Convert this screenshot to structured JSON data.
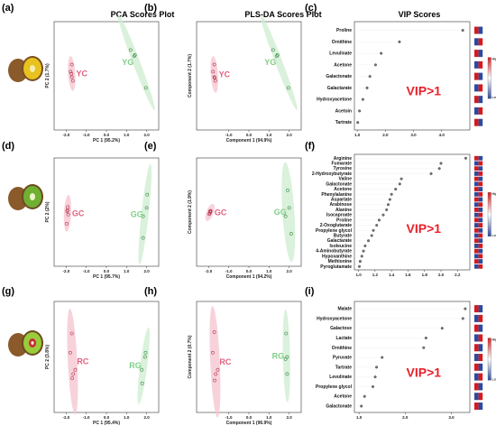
{
  "colors": {
    "yellow_group": "#e0607e",
    "green_group": "#7fcf86",
    "yellow_fill": "#f6c3cf",
    "green_fill": "#cdeccf",
    "red_group": "#e0607e",
    "red_fill": "#f6c3cf",
    "vip_text": "#e8202a",
    "heat_high": "#d7191c",
    "heat_low": "#2c4a9e"
  },
  "column_titles": {
    "pca": "PCA Scores Plot",
    "plsda": "PLS-DA Scores Plot",
    "vip": "VIP Scores"
  },
  "vip_threshold_label": "VIP>1",
  "heat_legend": {
    "high": "High",
    "low": "Low"
  },
  "chart_data": [
    {
      "panel": "(a)",
      "type": "scatter",
      "xlabel": "PC 1 (95.2%)",
      "ylabel": "PC 2 (1.7%)",
      "xlim": [
        -2.6,
        2.6
      ],
      "ylim": [
        -1.3,
        1.3
      ],
      "xticks": [
        "-2.0",
        "-1.0",
        "0.0",
        "1.0",
        "2.0"
      ],
      "xtick_values": [
        -2,
        -1,
        0,
        1,
        2
      ],
      "series": [
        {
          "name": "YC",
          "points": [
            [
              -1.72,
              0.27
            ],
            [
              -1.78,
              0.1
            ],
            [
              -1.72,
              -0.03
            ],
            [
              -1.67,
              -0.12
            ],
            [
              -1.74,
              0.05
            ]
          ]
        },
        {
          "name": "YG",
          "points": [
            [
              1.38,
              0.47
            ],
            [
              1.42,
              0.5
            ],
            [
              1.96,
              -0.29
            ],
            [
              1.2,
              0.62
            ]
          ]
        }
      ]
    },
    {
      "panel": "(b)",
      "type": "scatter",
      "xlabel": "Component 1 (94.9%)",
      "ylabel": "Component 2 (1.7%)",
      "xlim": [
        -2.6,
        2.6
      ],
      "ylim": [
        -1.3,
        1.3
      ],
      "xticks": [
        "-1.0",
        "0.0",
        "1.0",
        "2.0"
      ],
      "xtick_values": [
        -1,
        0,
        1,
        2
      ],
      "series": [
        {
          "name": "YC",
          "points": [
            [
              -1.72,
              0.27
            ],
            [
              -1.78,
              0.1
            ],
            [
              -1.72,
              -0.03
            ],
            [
              -1.67,
              -0.12
            ],
            [
              -1.7,
              -0.05
            ]
          ]
        },
        {
          "name": "YG",
          "points": [
            [
              1.38,
              0.47
            ],
            [
              1.42,
              0.5
            ],
            [
              1.96,
              -0.29
            ],
            [
              1.2,
              0.62
            ]
          ]
        }
      ]
    },
    {
      "panel": "(c)",
      "type": "scatter",
      "title": "VIP Scores",
      "xlim": [
        0.9,
        5.0
      ],
      "xticks": [
        "1.0",
        "2.0",
        "3.0",
        "4.0"
      ],
      "xtick_values": [
        1,
        2,
        3,
        4
      ],
      "categories": [
        "Proline",
        "Ornithine",
        "Levulinate",
        "Acetone",
        "Galactonate",
        "Galactarate",
        "Hydroxyacetone",
        "Acetoin",
        "Tartrate"
      ],
      "values": [
        4.75,
        2.5,
        1.85,
        1.65,
        1.45,
        1.35,
        1.2,
        1.08,
        1.02
      ]
    },
    {
      "panel": "(d)",
      "type": "scatter",
      "xlabel": "PC 1 (95.7%)",
      "ylabel": "PC 2 (2%)",
      "xlim": [
        -2.6,
        2.6
      ],
      "ylim": [
        -1.3,
        1.3
      ],
      "xticks": [
        "-2.0",
        "-1.0",
        "0.0",
        "1.0",
        "2.0"
      ],
      "xtick_values": [
        -2,
        -1,
        0,
        1,
        2
      ],
      "series": [
        {
          "name": "GC",
          "points": [
            [
              -1.92,
              0.12
            ],
            [
              -1.95,
              0.02
            ],
            [
              -1.9,
              -0.06
            ],
            [
              -1.97,
              -0.28
            ],
            [
              -1.93,
              0.05
            ]
          ]
        },
        {
          "name": "GG",
          "points": [
            [
              2.03,
              0.42
            ],
            [
              2.0,
              0.1
            ],
            [
              1.82,
              -0.1
            ],
            [
              1.82,
              -0.62
            ]
          ]
        }
      ]
    },
    {
      "panel": "(e)",
      "type": "scatter",
      "xlabel": "Component 1 (94.2%)",
      "ylabel": "Component 2 (1.9%)",
      "xlim": [
        -2.6,
        2.6
      ],
      "ylim": [
        -1.3,
        1.3
      ],
      "xticks": [
        "-2.0",
        "-1.0",
        "0.0",
        "1.0",
        "2.0"
      ],
      "xtick_values": [
        -2,
        -1,
        0,
        1,
        2
      ],
      "series": [
        {
          "name": "GC",
          "points": [
            [
              -1.92,
              0.0
            ],
            [
              -1.95,
              -0.03
            ],
            [
              -1.9,
              0.03
            ],
            [
              -1.97,
              -0.05
            ],
            [
              -1.93,
              0.02
            ]
          ]
        },
        {
          "name": "GG",
          "points": [
            [
              1.93,
              0.52
            ],
            [
              2.0,
              0.1
            ],
            [
              1.82,
              -0.1
            ],
            [
              2.1,
              -0.52
            ]
          ]
        }
      ]
    },
    {
      "panel": "(f)",
      "type": "scatter",
      "title": "VIP Scores",
      "xlim": [
        0.95,
        2.35
      ],
      "xticks": [
        "1.0",
        "1.2",
        "1.4",
        "1.6",
        "1.8",
        "2.0",
        "2.2"
      ],
      "xtick_values": [
        1.0,
        1.2,
        1.4,
        1.6,
        1.8,
        2.0,
        2.2
      ],
      "categories": [
        "Arginine",
        "Fumarate",
        "Tyrosine",
        "2-Hydroxybutyrate",
        "Valine",
        "Galactonate",
        "Acetone",
        "Phenylalanine",
        "Aspartate",
        "Arabinose",
        "Alanine",
        "Isocaproate",
        "Proline",
        "2-Oxoglutarate",
        "Propylene glycol",
        "Butyrate",
        "Galactarate",
        "Isoleucine",
        "4-Aminobutyrate",
        "Hypoxanthine",
        "Methionine",
        "Pyroglutamate"
      ],
      "values": [
        2.3,
        2.0,
        1.98,
        1.88,
        1.52,
        1.5,
        1.45,
        1.4,
        1.38,
        1.36,
        1.34,
        1.3,
        1.25,
        1.22,
        1.18,
        1.16,
        1.12,
        1.08,
        1.06,
        1.04,
        1.02,
        1.01
      ]
    },
    {
      "panel": "(g)",
      "type": "scatter",
      "xlabel": "PC 1 (95.4%)",
      "ylabel": "PC 2 (3.8%)",
      "xlim": [
        -2.6,
        2.6
      ],
      "ylim": [
        -1.3,
        1.3
      ],
      "xticks": [
        "-2.0",
        "-1.0",
        "0.0",
        "1.0",
        "2.0"
      ],
      "xtick_values": [
        -2,
        -1,
        0,
        1,
        2
      ],
      "series": [
        {
          "name": "RC",
          "points": [
            [
              -1.72,
              0.55
            ],
            [
              -1.8,
              0.1
            ],
            [
              -1.55,
              -0.3
            ],
            [
              -1.65,
              -0.4
            ],
            [
              -1.7,
              -0.5
            ]
          ]
        },
        {
          "name": "RG",
          "points": [
            [
              1.95,
              0.1
            ],
            [
              1.92,
              0.0
            ],
            [
              1.75,
              -0.3
            ],
            [
              1.78,
              -0.62
            ]
          ]
        }
      ]
    },
    {
      "panel": "(h)",
      "type": "scatter",
      "xlabel": "Component 1 (96.9%)",
      "ylabel": "Component 2 (0.7%)",
      "xlim": [
        -2.6,
        2.6
      ],
      "ylim": [
        -1.3,
        1.3
      ],
      "xticks": [
        "-1.0",
        "0.0",
        "1.0",
        "2.0"
      ],
      "xtick_values": [
        -1,
        0,
        1,
        2
      ],
      "series": [
        {
          "name": "RC",
          "points": [
            [
              -1.72,
              0.58
            ],
            [
              -1.8,
              0.1
            ],
            [
              -1.55,
              -0.3
            ],
            [
              -1.65,
              -0.4
            ],
            [
              -1.7,
              -0.55
            ]
          ]
        },
        {
          "name": "RG",
          "points": [
            [
              1.85,
              0.55
            ],
            [
              1.9,
              0.0
            ],
            [
              1.82,
              -0.05
            ],
            [
              1.9,
              -0.4
            ]
          ]
        }
      ]
    },
    {
      "panel": "(i)",
      "type": "scatter",
      "title": "VIP Scores",
      "xlim": [
        0.9,
        3.4
      ],
      "xticks": [
        "1.0",
        "2.0",
        "3.0"
      ],
      "xtick_values": [
        1,
        2,
        3
      ],
      "categories": [
        "Malate",
        "Hydroxyacetone",
        "Galactose",
        "Lactate",
        "Ornithine",
        "Pyruvate",
        "Tartrate",
        "Levulinate",
        "Propylene glycol",
        "Acetone",
        "Galactonate"
      ],
      "values": [
        3.3,
        3.25,
        2.8,
        2.45,
        2.4,
        1.5,
        1.38,
        1.35,
        1.3,
        1.12,
        1.05
      ]
    }
  ]
}
